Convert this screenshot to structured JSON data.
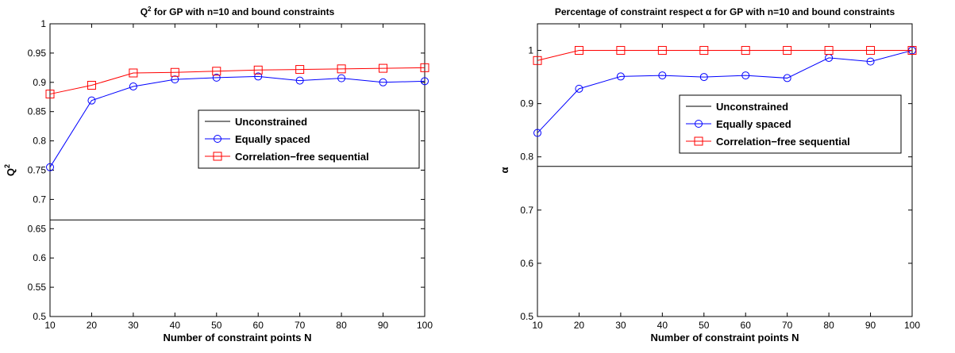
{
  "chart_data": [
    {
      "type": "line",
      "title": "Q² for GP with n=10 and bound constraints",
      "title_main": "Q",
      "title_sup": "2",
      "title_rest": " for GP with n=10 and bound constraints",
      "xlabel": "Number of constraint points N",
      "ylabel": "Q²",
      "ylabel_main": "Q",
      "ylabel_sup": "2",
      "xlim": [
        10,
        100
      ],
      "ylim": [
        0.5,
        1
      ],
      "xticks": [
        10,
        20,
        30,
        40,
        50,
        60,
        70,
        80,
        90,
        100
      ],
      "yticks": [
        0.5,
        0.55,
        0.6,
        0.65,
        0.7,
        0.75,
        0.8,
        0.85,
        0.9,
        0.95,
        1
      ],
      "ytick_labels": [
        "0.5",
        "0.55",
        "0.6",
        "0.65",
        "0.7",
        "0.75",
        "0.8",
        "0.85",
        "0.9",
        "0.95",
        "1"
      ],
      "grid": false,
      "legend_position": "center-right",
      "x": [
        10,
        20,
        30,
        40,
        50,
        60,
        70,
        80,
        90,
        100
      ],
      "series": [
        {
          "name": "Unconstrained",
          "values": [
            0.665,
            0.665,
            0.665,
            0.665,
            0.665,
            0.665,
            0.665,
            0.665,
            0.665,
            0.665
          ],
          "color": "#000000",
          "marker": "none"
        },
        {
          "name": "Equally spaced",
          "values": [
            0.755,
            0.869,
            0.893,
            0.905,
            0.908,
            0.91,
            0.903,
            0.907,
            0.9,
            0.902
          ],
          "color": "#0000ff",
          "marker": "circle"
        },
        {
          "name": "Correlation−free sequential",
          "values": [
            0.88,
            0.895,
            0.916,
            0.917,
            0.919,
            0.921,
            0.922,
            0.923,
            0.924,
            0.925
          ],
          "color": "#ff0000",
          "marker": "square"
        }
      ]
    },
    {
      "type": "line",
      "title": "Percentage of constraint respect α for GP with n=10 and bound constraints",
      "xlabel": "Number of constraint points N",
      "ylabel": "α",
      "xlim": [
        10,
        100
      ],
      "ylim": [
        0.5,
        1.05
      ],
      "xticks": [
        10,
        20,
        30,
        40,
        50,
        60,
        70,
        80,
        90,
        100
      ],
      "yticks": [
        0.5,
        0.6,
        0.7,
        0.8,
        0.9,
        1
      ],
      "ytick_labels": [
        "0.5",
        "0.6",
        "0.7",
        "0.8",
        "0.9",
        "1"
      ],
      "grid": false,
      "legend_position": "upper-right",
      "x": [
        10,
        20,
        30,
        40,
        50,
        60,
        70,
        80,
        90,
        100
      ],
      "series": [
        {
          "name": "Unconstrained",
          "values": [
            0.782,
            0.782,
            0.782,
            0.782,
            0.782,
            0.782,
            0.782,
            0.782,
            0.782,
            0.782
          ],
          "color": "#000000",
          "marker": "none"
        },
        {
          "name": "Equally spaced",
          "values": [
            0.845,
            0.928,
            0.951,
            0.953,
            0.95,
            0.953,
            0.948,
            0.986,
            0.979,
            1.0
          ],
          "color": "#0000ff",
          "marker": "circle"
        },
        {
          "name": "Correlation−free sequential",
          "values": [
            0.981,
            1.0,
            1.0,
            1.0,
            1.0,
            1.0,
            1.0,
            1.0,
            1.0,
            1.0
          ],
          "color": "#ff0000",
          "marker": "square"
        }
      ]
    }
  ]
}
